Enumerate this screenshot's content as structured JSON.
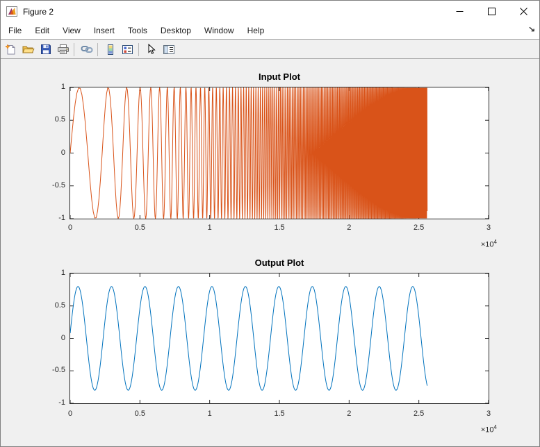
{
  "window": {
    "title": "Figure 2",
    "controls": [
      {
        "name": "minimize-button",
        "icon": "minimize-icon"
      },
      {
        "name": "maximize-button",
        "icon": "maximize-icon"
      },
      {
        "name": "close-button",
        "icon": "close-icon"
      }
    ]
  },
  "menu": {
    "items": [
      {
        "label": "File"
      },
      {
        "label": "Edit"
      },
      {
        "label": "View"
      },
      {
        "label": "Insert"
      },
      {
        "label": "Tools"
      },
      {
        "label": "Desktop"
      },
      {
        "label": "Window"
      },
      {
        "label": "Help"
      }
    ],
    "dock_arrow_glyph": "↘"
  },
  "toolbar": {
    "buttons": [
      {
        "name": "new-figure-button",
        "icon": "new-figure-icon"
      },
      {
        "name": "open-file-button",
        "icon": "open-folder-icon"
      },
      {
        "name": "save-figure-button",
        "icon": "save-icon"
      },
      {
        "name": "print-figure-button",
        "icon": "printer-icon"
      },
      {
        "name": "link-plot-button",
        "icon": "link-icon"
      },
      {
        "name": "insert-colorbar-button",
        "icon": "colorbar-icon"
      },
      {
        "name": "insert-legend-button",
        "icon": "legend-icon"
      },
      {
        "name": "edit-plot-button",
        "icon": "cursor-arrow-icon"
      },
      {
        "name": "property-inspector-button",
        "icon": "property-inspector-icon"
      }
    ]
  },
  "chart_data": [
    {
      "type": "line",
      "title": "Input Plot",
      "line_color": "#D95319",
      "axis_color": "#262626",
      "grid": false,
      "legend": null,
      "xlim": [
        0,
        30000
      ],
      "ylim": [
        -1,
        1
      ],
      "xtick_values": [
        0,
        5000,
        10000,
        15000,
        20000,
        25000,
        30000
      ],
      "xtick_labels": [
        "0",
        "0.5",
        "1",
        "1.5",
        "2",
        "2.5",
        "3"
      ],
      "x_multiplier_base": "×10",
      "x_multiplier_exp": "4",
      "ytick_values": [
        -1,
        -0.5,
        0,
        0.5,
        1
      ],
      "ytick_labels": [
        "-1",
        "-0.5",
        "0",
        "0.5",
        "1"
      ],
      "signal": {
        "kind": "chirp",
        "amplitude": 1,
        "f0": 0.00038,
        "k": 3.2e-11,
        "length": 25600,
        "description": "Sine sweep starting near period 2600 samples; instantaneous frequency f0 + k*x^2 (~190 cycles total); trace appears as a solid band beyond x of about 16000 and stops abruptly at x = 25600."
      }
    },
    {
      "type": "line",
      "title": "Output Plot",
      "line_color": "#0072BD",
      "axis_color": "#262626",
      "grid": false,
      "legend": null,
      "xlim": [
        0,
        30000
      ],
      "ylim": [
        -1,
        1
      ],
      "xtick_values": [
        0,
        5000,
        10000,
        15000,
        20000,
        25000,
        30000
      ],
      "xtick_labels": [
        "0",
        "0.5",
        "1",
        "1.5",
        "2",
        "2.5",
        "3"
      ],
      "x_multiplier_base": "×10",
      "x_multiplier_exp": "4",
      "ytick_values": [
        -1,
        -0.5,
        0,
        0.5,
        1
      ],
      "ytick_labels": [
        "-1",
        "-0.5",
        "0",
        "0.5",
        "1"
      ],
      "signal": {
        "kind": "sine",
        "amplitude": 0.8,
        "period": 2400,
        "phase": 0.1,
        "length": 25600,
        "description": "Fixed-frequency sine, amplitude 0.8, about 10.7 cycles from x=0 to x=25600, starting near y=0.08 rising and ending near y=-0.73 falling."
      }
    }
  ]
}
